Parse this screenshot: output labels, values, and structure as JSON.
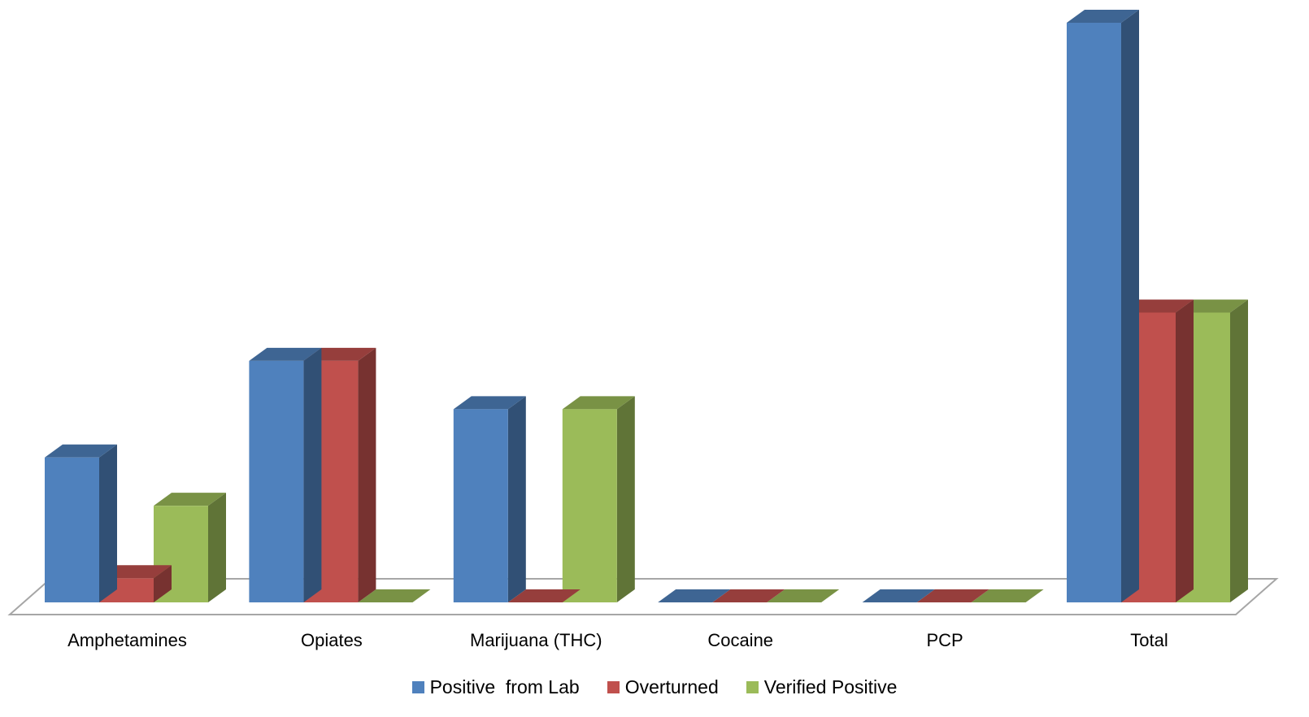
{
  "chart_data": {
    "type": "bar",
    "style": "3d-clustered-column",
    "categories": [
      "Amphetamines",
      "Opiates",
      "Marijuana (THC)",
      "Cocaine",
      "PCP",
      "Total"
    ],
    "series": [
      {
        "name": "Positive  from Lab",
        "color": "#4F81BD",
        "values": [
          3,
          5,
          4,
          0,
          0,
          12
        ]
      },
      {
        "name": "Overturned",
        "color": "#C0504D",
        "values": [
          0.5,
          5,
          0,
          0,
          0,
          6
        ]
      },
      {
        "name": "Verified Positive",
        "color": "#9BBB59",
        "values": [
          2,
          0,
          4,
          0,
          0,
          6
        ]
      }
    ],
    "ylim": [
      0,
      12
    ],
    "grid": false,
    "legend_position": "bottom"
  }
}
